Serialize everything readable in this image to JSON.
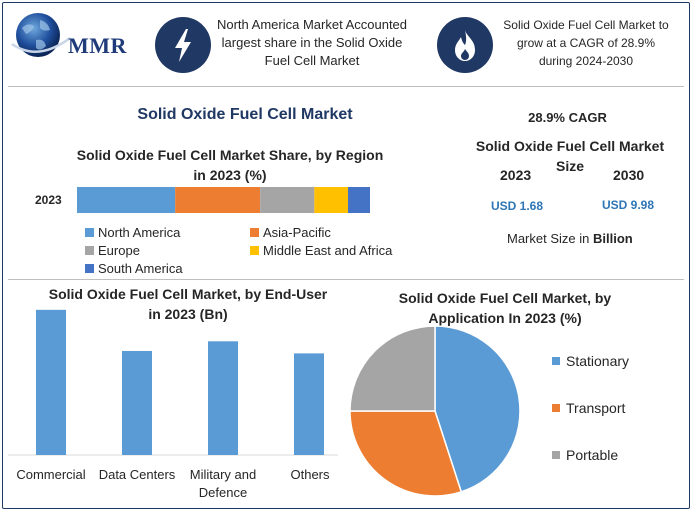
{
  "logo": {
    "text": "MMR"
  },
  "header": {
    "fact1": "North America Market Accounted largest share in the Solid Oxide Fuel Cell Market",
    "fact2": "Solid Oxide Fuel Cell Market to grow at a CAGR of 28.9% during 2024-2030",
    "icon1": "lightning-bolt-icon",
    "icon2": "flame-icon"
  },
  "main_title": "Solid Oxide Fuel Cell Market",
  "market_size": {
    "cagr": "28.9% CAGR",
    "title": "Solid Oxide Fuel Cell Market Size",
    "year1": "2023",
    "year2": "2030",
    "value1": "USD 1.68",
    "value2": "USD 9.98",
    "unit_prefix": "Market Size in ",
    "unit_bold": "Billion"
  },
  "colors": {
    "blue": "#5b9bd5",
    "orange": "#ed7d31",
    "gray": "#a5a5a5",
    "yellow": "#ffc000",
    "dark_blue": "#4472c4",
    "navy": "#203864",
    "usd_blue": "#2e75b6"
  },
  "chart_data": [
    {
      "type": "bar",
      "orientation": "horizontal-stacked",
      "title": "Solid Oxide Fuel Cell Market Share, by Region in 2023 (%)",
      "categories": [
        "2023"
      ],
      "series": [
        {
          "name": "North America",
          "values": [
            33.5
          ],
          "color": "#5b9bd5"
        },
        {
          "name": "Asia-Pacific",
          "values": [
            29
          ],
          "color": "#ed7d31"
        },
        {
          "name": "Europe",
          "values": [
            18.5
          ],
          "color": "#a5a5a5"
        },
        {
          "name": "Middle East and Africa",
          "values": [
            11.5
          ],
          "color": "#ffc000"
        },
        {
          "name": "South America",
          "values": [
            7.5
          ],
          "color": "#4472c4"
        }
      ],
      "legend": "bottom",
      "grid": false
    },
    {
      "type": "bar",
      "title": "Solid Oxide Fuel Cell Market, by End-User in 2023 (Bn)",
      "categories": [
        "Commercial",
        "Data Centers",
        "Military and Defence",
        "Others"
      ],
      "values": [
        0.6,
        0.43,
        0.47,
        0.42
      ],
      "ylim": [
        0,
        0.62
      ],
      "color": "#5b9bd5",
      "grid": false
    },
    {
      "type": "pie",
      "title": "Solid Oxide Fuel Cell Market, by Application In 2023 (%)",
      "labels": [
        "Stationary",
        "Transport",
        "Portable"
      ],
      "values": [
        45,
        30,
        25
      ],
      "colors": [
        "#5b9bd5",
        "#ed7d31",
        "#a5a5a5"
      ],
      "legend": "right"
    }
  ]
}
